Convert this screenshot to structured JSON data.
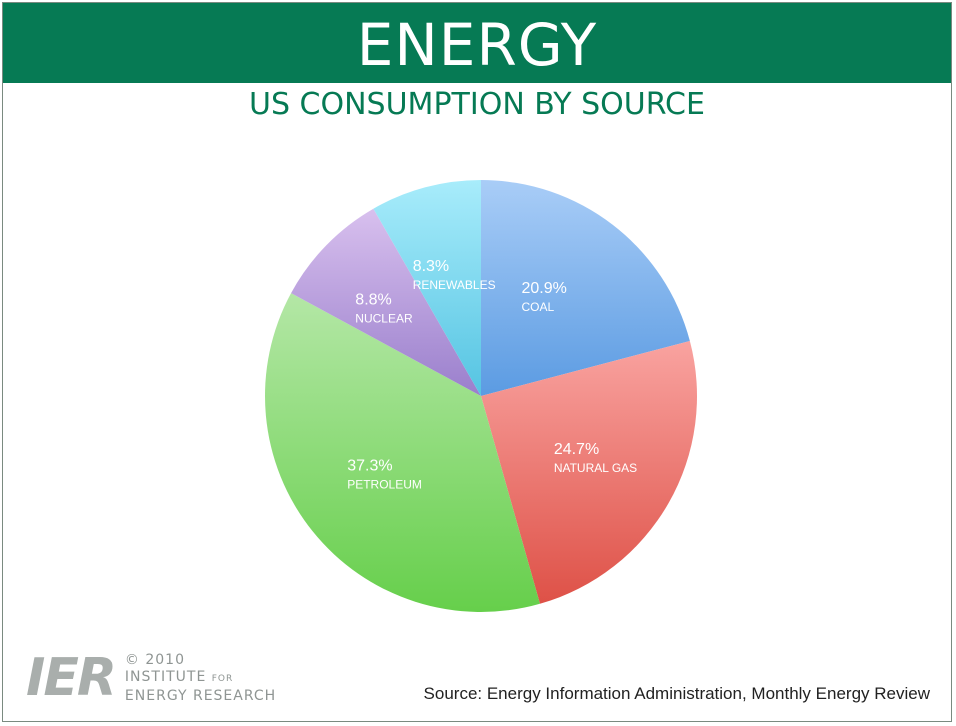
{
  "header": {
    "title": "ENERGY",
    "subtitle": "US CONSUMPTION BY SOURCE"
  },
  "chart_data": {
    "type": "pie",
    "title": "US CONSUMPTION BY SOURCE",
    "slices": [
      {
        "label": "COAL",
        "value": 20.9,
        "display": "20.9%",
        "color_top": "#a9cdf7",
        "color_bottom": "#5b9be2"
      },
      {
        "label": "NATURAL GAS",
        "value": 24.7,
        "display": "24.7%",
        "color_top": "#f9a3a0",
        "color_bottom": "#de5147"
      },
      {
        "label": "PETROLEUM",
        "value": 37.3,
        "display": "37.3%",
        "color_top": "#b4e7a6",
        "color_bottom": "#66cf4b"
      },
      {
        "label": "NUCLEAR",
        "value": 8.8,
        "display": "8.8%",
        "color_top": "#d8c0ee",
        "color_bottom": "#9a7fcc"
      },
      {
        "label": "RENEWABLES",
        "value": 8.3,
        "display": "8.3%",
        "color_top": "#a8ecfb",
        "color_bottom": "#55c4e2"
      }
    ],
    "start_angle_deg": 0,
    "direction": "clockwise"
  },
  "footer": {
    "logo_mark": "IER",
    "copyright": "© 2010",
    "org_line1": "INSTITUTE",
    "org_line1_small": "FOR",
    "org_line2": "ENERGY RESEARCH",
    "source": "Source: Energy Information Administration, Monthly Energy Review"
  },
  "colors": {
    "brand_green": "#067a54"
  }
}
